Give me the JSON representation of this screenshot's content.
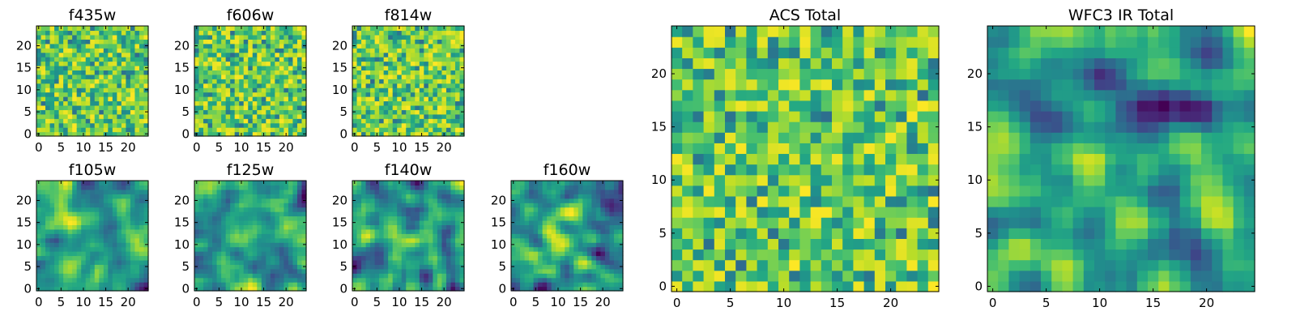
{
  "chart_data": [
    {
      "type": "heatmap",
      "title": "f435w",
      "grid_size": 25,
      "xlim": [
        0,
        24
      ],
      "ylim": [
        0,
        24
      ],
      "xticks": [
        "0",
        "5",
        "10",
        "15",
        "20"
      ],
      "yticks": [
        "0",
        "5",
        "10",
        "15",
        "20"
      ],
      "colormap": "viridis",
      "texture": "noise",
      "seed": 11
    },
    {
      "type": "heatmap",
      "title": "f606w",
      "grid_size": 25,
      "xlim": [
        0,
        24
      ],
      "ylim": [
        0,
        24
      ],
      "xticks": [
        "0",
        "5",
        "10",
        "15",
        "20"
      ],
      "yticks": [
        "0",
        "5",
        "10",
        "15",
        "20"
      ],
      "colormap": "viridis",
      "texture": "noise",
      "seed": 23
    },
    {
      "type": "heatmap",
      "title": "f814w",
      "grid_size": 25,
      "xlim": [
        0,
        24
      ],
      "ylim": [
        0,
        24
      ],
      "xticks": [
        "0",
        "5",
        "10",
        "15",
        "20"
      ],
      "yticks": [
        "0",
        "5",
        "10",
        "15",
        "20"
      ],
      "colormap": "viridis",
      "texture": "noise",
      "seed": 37
    },
    {
      "type": "heatmap",
      "title": "f105w",
      "grid_size": 25,
      "xlim": [
        0,
        24
      ],
      "ylim": [
        0,
        24
      ],
      "xticks": [
        "0",
        "5",
        "10",
        "15",
        "20"
      ],
      "yticks": [
        "0",
        "5",
        "10",
        "15",
        "20"
      ],
      "colormap": "viridis",
      "texture": "smooth",
      "seed": 41
    },
    {
      "type": "heatmap",
      "title": "f125w",
      "grid_size": 25,
      "xlim": [
        0,
        24
      ],
      "ylim": [
        0,
        24
      ],
      "xticks": [
        "0",
        "5",
        "10",
        "15",
        "20"
      ],
      "yticks": [
        "0",
        "5",
        "10",
        "15",
        "20"
      ],
      "colormap": "viridis",
      "texture": "smooth",
      "seed": 53
    },
    {
      "type": "heatmap",
      "title": "f140w",
      "grid_size": 25,
      "xlim": [
        0,
        24
      ],
      "ylim": [
        0,
        24
      ],
      "xticks": [
        "0",
        "5",
        "10",
        "15",
        "20"
      ],
      "yticks": [
        "0",
        "5",
        "10",
        "15",
        "20"
      ],
      "colormap": "viridis",
      "texture": "smooth",
      "seed": 67
    },
    {
      "type": "heatmap",
      "title": "f160w",
      "grid_size": 25,
      "xlim": [
        0,
        24
      ],
      "ylim": [
        0,
        24
      ],
      "xticks": [
        "0",
        "5",
        "10",
        "15",
        "20"
      ],
      "yticks": [
        "0",
        "5",
        "10",
        "15",
        "20"
      ],
      "colormap": "viridis",
      "texture": "smooth",
      "seed": 71
    },
    {
      "type": "heatmap",
      "title": "ACS Total",
      "grid_size": 25,
      "xlim": [
        0,
        24
      ],
      "ylim": [
        0,
        24
      ],
      "xticks": [
        "0",
        "5",
        "10",
        "15",
        "20"
      ],
      "yticks": [
        "0",
        "5",
        "10",
        "15",
        "20"
      ],
      "colormap": "viridis",
      "texture": "noise",
      "seed": 89
    },
    {
      "type": "heatmap",
      "title": "WFC3 IR Total",
      "grid_size": 25,
      "xlim": [
        0,
        24
      ],
      "ylim": [
        0,
        24
      ],
      "xticks": [
        "0",
        "5",
        "10",
        "15",
        "20"
      ],
      "yticks": [
        "0",
        "5",
        "10",
        "15",
        "20"
      ],
      "colormap": "viridis",
      "texture": "smooth",
      "seed": 97
    }
  ]
}
